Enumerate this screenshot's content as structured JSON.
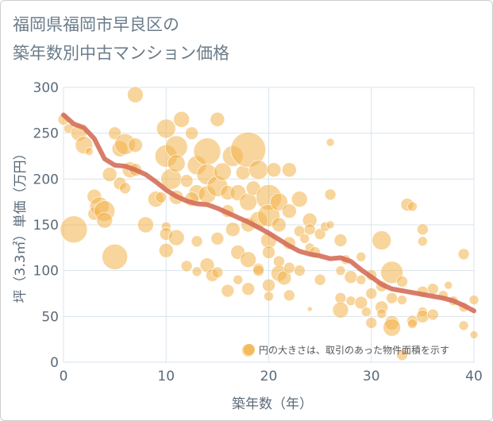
{
  "title_line1": "福岡県福岡市早良区の",
  "title_line2": "築年数別中古マンション価格",
  "chart_data": {
    "type": "scatter",
    "xlabel": "築年数（年）",
    "ylabel": "坪（3.3㎡）単価（万円）",
    "xlim": [
      0,
      40
    ],
    "ylim": [
      0,
      300
    ],
    "xticks": [
      0,
      10,
      20,
      30,
      40
    ],
    "yticks": [
      0,
      50,
      100,
      150,
      200,
      250,
      300
    ],
    "grid": true,
    "annotation": "円の大きさは、取引のあった物件面積を示す",
    "colors": {
      "bubble": "#F2B24A",
      "trend": "#D36B55",
      "grid": "#d8e3ec"
    },
    "points": [
      [
        0,
        265,
        7
      ],
      [
        0.5,
        255,
        6
      ],
      [
        1,
        145,
        17
      ],
      [
        1.5,
        250,
        10
      ],
      [
        2,
        237,
        11
      ],
      [
        2.5,
        230,
        5
      ],
      [
        3,
        181,
        9
      ],
      [
        3,
        162,
        8
      ],
      [
        3.5,
        170,
        12
      ],
      [
        4,
        165,
        13
      ],
      [
        4,
        155,
        10
      ],
      [
        4.5,
        205,
        9
      ],
      [
        5,
        250,
        8
      ],
      [
        5,
        115,
        16
      ],
      [
        5.5,
        233,
        10
      ],
      [
        5.5,
        195,
        8
      ],
      [
        6,
        238,
        13
      ],
      [
        6,
        190,
        7
      ],
      [
        6.5,
        210,
        10
      ],
      [
        7,
        292,
        10
      ],
      [
        7,
        237,
        9
      ],
      [
        7,
        210,
        8
      ],
      [
        8,
        150,
        10
      ],
      [
        9,
        178,
        10
      ],
      [
        9.5,
        180,
        7
      ],
      [
        10,
        255,
        12
      ],
      [
        10,
        225,
        14
      ],
      [
        10,
        148,
        6
      ],
      [
        10,
        140,
        8
      ],
      [
        10,
        122,
        9
      ],
      [
        10.5,
        200,
        13
      ],
      [
        11,
        235,
        14
      ],
      [
        11,
        217,
        11
      ],
      [
        11,
        180,
        9
      ],
      [
        11,
        136,
        10
      ],
      [
        11.5,
        265,
        10
      ],
      [
        12,
        198,
        8
      ],
      [
        12,
        105,
        7
      ],
      [
        12.5,
        250,
        8
      ],
      [
        13,
        215,
        12
      ],
      [
        13,
        185,
        10
      ],
      [
        13,
        132,
        7
      ],
      [
        13,
        99,
        6
      ],
      [
        14,
        230,
        17
      ],
      [
        14,
        205,
        13
      ],
      [
        14,
        183,
        11
      ],
      [
        14,
        106,
        9
      ],
      [
        14.5,
        95,
        8
      ],
      [
        15,
        265,
        9
      ],
      [
        15,
        192,
        13
      ],
      [
        15,
        135,
        8
      ],
      [
        15,
        98,
        7
      ],
      [
        15.5,
        208,
        11
      ],
      [
        16,
        185,
        9
      ],
      [
        16,
        165,
        8
      ],
      [
        16,
        78,
        8
      ],
      [
        16.5,
        225,
        13
      ],
      [
        16.5,
        145,
        9
      ],
      [
        17,
        185,
        10
      ],
      [
        17,
        120,
        9
      ],
      [
        17,
        90,
        6
      ],
      [
        17.5,
        207,
        9
      ],
      [
        18,
        232,
        22
      ],
      [
        18,
        175,
        11
      ],
      [
        18,
        150,
        9
      ],
      [
        18,
        112,
        10
      ],
      [
        18,
        80,
        8
      ],
      [
        18,
        13,
        8
      ],
      [
        18.5,
        190,
        9
      ],
      [
        19,
        210,
        12
      ],
      [
        19,
        155,
        11
      ],
      [
        19,
        102,
        7
      ],
      [
        20,
        180,
        16
      ],
      [
        20,
        160,
        14
      ],
      [
        20,
        133,
        10
      ],
      [
        20,
        120,
        8
      ],
      [
        20,
        84,
        8
      ],
      [
        20,
        72,
        6
      ],
      [
        20.5,
        210,
        9
      ],
      [
        21,
        175,
        11
      ],
      [
        21,
        150,
        9
      ],
      [
        21,
        110,
        7
      ],
      [
        21,
        97,
        10
      ],
      [
        21.5,
        92,
        9
      ],
      [
        22,
        210,
        9
      ],
      [
        22,
        165,
        9
      ],
      [
        22,
        130,
        8
      ],
      [
        22,
        103,
        7
      ],
      [
        22,
        73,
        7
      ],
      [
        23,
        178,
        10
      ],
      [
        23,
        143,
        7
      ],
      [
        23,
        100,
        7
      ],
      [
        23.5,
        135,
        6
      ],
      [
        24,
        155,
        9
      ],
      [
        24,
        145,
        7
      ],
      [
        24,
        125,
        6
      ],
      [
        24,
        58,
        3
      ],
      [
        24.5,
        120,
        7
      ],
      [
        25,
        140,
        7
      ],
      [
        25,
        90,
        7
      ],
      [
        25.5,
        148,
        6
      ],
      [
        26,
        240,
        5
      ],
      [
        26,
        183,
        7
      ],
      [
        26,
        150,
        5
      ],
      [
        27,
        133,
        8
      ],
      [
        27,
        100,
        6
      ],
      [
        27,
        70,
        7
      ],
      [
        27,
        57,
        10
      ],
      [
        27.5,
        112,
        6
      ],
      [
        28,
        93,
        8
      ],
      [
        28,
        67,
        6
      ],
      [
        29,
        90,
        6
      ],
      [
        29,
        115,
        6
      ],
      [
        29,
        65,
        8
      ],
      [
        29.5,
        55,
        6
      ],
      [
        30,
        95,
        7
      ],
      [
        30,
        75,
        7
      ],
      [
        30,
        43,
        7
      ],
      [
        31,
        133,
        12
      ],
      [
        31,
        83,
        7
      ],
      [
        31,
        60,
        8
      ],
      [
        31,
        53,
        6
      ],
      [
        32,
        98,
        14
      ],
      [
        32,
        70,
        7
      ],
      [
        32,
        43,
        9
      ],
      [
        32,
        38,
        11
      ],
      [
        33,
        88,
        7
      ],
      [
        33,
        68,
        6
      ],
      [
        33,
        8,
        7
      ],
      [
        33.5,
        172,
        8
      ],
      [
        34,
        170,
        6
      ],
      [
        34,
        45,
        7
      ],
      [
        34,
        42,
        6
      ],
      [
        35,
        145,
        7
      ],
      [
        35,
        132,
        6
      ],
      [
        35,
        77,
        7
      ],
      [
        35,
        55,
        6
      ],
      [
        35,
        50,
        8
      ],
      [
        36,
        80,
        7
      ],
      [
        36,
        52,
        7
      ],
      [
        37,
        73,
        6
      ],
      [
        37.5,
        84,
        5
      ],
      [
        38,
        67,
        6
      ],
      [
        39,
        118,
        7
      ],
      [
        39,
        60,
        6
      ],
      [
        39,
        40,
        6
      ],
      [
        40,
        68,
        6
      ],
      [
        40,
        30,
        5
      ],
      [
        19,
        100,
        7
      ],
      [
        12.5,
        178,
        9
      ]
    ],
    "trend": [
      [
        0,
        270
      ],
      [
        1,
        260
      ],
      [
        2,
        256
      ],
      [
        3,
        244
      ],
      [
        4,
        222
      ],
      [
        5,
        215
      ],
      [
        6,
        214
      ],
      [
        7,
        210
      ],
      [
        8,
        205
      ],
      [
        9,
        197
      ],
      [
        10,
        188
      ],
      [
        11,
        181
      ],
      [
        12,
        176
      ],
      [
        13,
        173
      ],
      [
        14,
        172
      ],
      [
        15,
        168
      ],
      [
        16,
        163
      ],
      [
        17,
        158
      ],
      [
        18,
        153
      ],
      [
        19,
        147
      ],
      [
        20,
        141
      ],
      [
        21,
        134
      ],
      [
        22,
        127
      ],
      [
        23,
        121
      ],
      [
        24,
        118
      ],
      [
        25,
        116
      ],
      [
        26,
        113
      ],
      [
        27,
        114
      ],
      [
        28,
        110
      ],
      [
        29,
        101
      ],
      [
        30,
        93
      ],
      [
        31,
        85
      ],
      [
        32,
        80
      ],
      [
        33,
        78
      ],
      [
        34,
        76
      ],
      [
        35,
        74
      ],
      [
        36,
        72
      ],
      [
        37,
        70
      ],
      [
        38,
        67
      ],
      [
        39,
        62
      ],
      [
        40,
        56
      ]
    ]
  }
}
